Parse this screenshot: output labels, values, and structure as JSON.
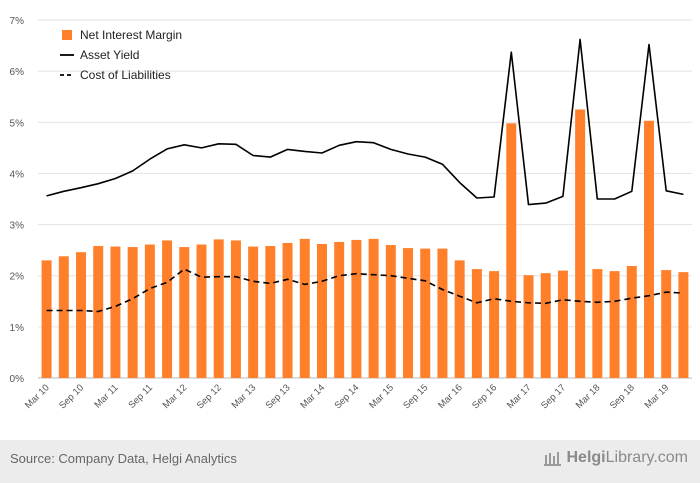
{
  "chart_data": {
    "type": "bar+line",
    "categories": [
      "Mar 10",
      "Jun 10",
      "Sep 10",
      "Dec 10",
      "Mar 11",
      "Jun 11",
      "Sep 11",
      "Dec 11",
      "Mar 12",
      "Jun 12",
      "Sep 12",
      "Dec 12",
      "Mar 13",
      "Jun 13",
      "Sep 13",
      "Dec 13",
      "Mar 14",
      "Jun 14",
      "Sep 14",
      "Dec 14",
      "Mar 15",
      "Jun 15",
      "Sep 15",
      "Dec 15",
      "Mar 16",
      "Jun 16",
      "Sep 16",
      "Dec 16",
      "Mar 17",
      "Jun 17",
      "Sep 17",
      "Dec 17",
      "Mar 18",
      "Jun 18",
      "Sep 18",
      "Dec 18",
      "Mar 19",
      "Jun 19"
    ],
    "tick_labels": [
      "Mar 10",
      "Sep 10",
      "Mar 11",
      "Sep 11",
      "Mar 12",
      "Sep 12",
      "Mar 13",
      "Sep 13",
      "Mar 14",
      "Sep 14",
      "Mar 15",
      "Sep 15",
      "Mar 16",
      "Sep 16",
      "Mar 17",
      "Sep 17",
      "Mar 18",
      "Sep 18",
      "Mar 19"
    ],
    "series": [
      {
        "name": "Net Interest Margin",
        "kind": "bar",
        "color": "#ff7f2a",
        "values": [
          2.3,
          2.38,
          2.46,
          2.58,
          2.57,
          2.56,
          2.61,
          2.69,
          2.56,
          2.61,
          2.71,
          2.69,
          2.57,
          2.58,
          2.64,
          2.72,
          2.62,
          2.66,
          2.7,
          2.72,
          2.6,
          2.54,
          2.53,
          2.53,
          2.3,
          2.13,
          2.09,
          4.98,
          2.01,
          2.05,
          2.1,
          5.25,
          2.13,
          2.09,
          2.19,
          5.03,
          2.11,
          2.07
        ]
      },
      {
        "name": "Asset Yield",
        "kind": "line",
        "dash": "solid",
        "color": "#000000",
        "values": [
          3.56,
          3.65,
          3.72,
          3.8,
          3.9,
          4.05,
          4.28,
          4.48,
          4.56,
          4.5,
          4.58,
          4.57,
          4.35,
          4.32,
          4.47,
          4.43,
          4.4,
          4.55,
          4.62,
          4.6,
          4.47,
          4.38,
          4.32,
          4.18,
          3.82,
          3.52,
          3.54,
          6.37,
          3.39,
          3.42,
          3.55,
          6.62,
          3.5,
          3.5,
          3.65,
          6.52,
          3.66,
          3.59
        ]
      },
      {
        "name": "Cost of Liabilities",
        "kind": "line",
        "dash": "dashed",
        "color": "#000000",
        "values": [
          1.32,
          1.32,
          1.32,
          1.3,
          1.4,
          1.55,
          1.75,
          1.87,
          2.13,
          1.97,
          1.98,
          1.98,
          1.89,
          1.85,
          1.93,
          1.83,
          1.89,
          2.0,
          2.04,
          2.02,
          2.0,
          1.95,
          1.9,
          1.73,
          1.6,
          1.47,
          1.55,
          1.5,
          1.47,
          1.46,
          1.53,
          1.5,
          1.48,
          1.5,
          1.56,
          1.61,
          1.68,
          1.66
        ]
      }
    ],
    "yticks": [
      "0%",
      "1%",
      "2%",
      "3%",
      "4%",
      "5%",
      "6%",
      "7%"
    ],
    "ylim": [
      0,
      7
    ],
    "grid": true,
    "legend_position": "top-left"
  },
  "footer": {
    "source": "Source: Company Data, Helgi Analytics",
    "brand_prefix": "Helgi",
    "brand_suffix": "Library.com"
  }
}
